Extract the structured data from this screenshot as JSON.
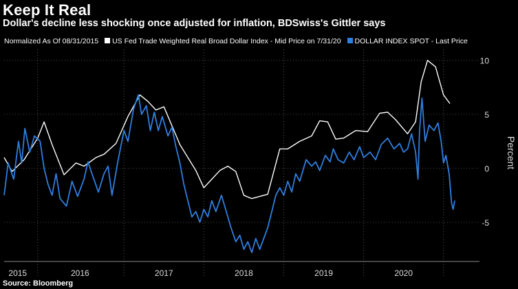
{
  "title": "Keep It Real",
  "subtitle": "Dollar's decline less shocking once adjusted for inflation, BDSwiss's Gittler says",
  "legend": {
    "note": "Normalized As Of 08/31/2015",
    "series1": "US Fed Trade Weighted Real Broad Dollar Index - Mid Price on 7/31/20",
    "series2": "DOLLAR INDEX SPOT - Last Price"
  },
  "source": "Source: Bloomberg",
  "colors": {
    "series1": "#ffffff",
    "series2": "#2f7fe0",
    "grid": "#444444",
    "background": "#000000"
  },
  "chart_data": {
    "type": "line",
    "ylabel": "Percent",
    "ylim": [
      -8.5,
      11
    ],
    "xlim": [
      2015.0,
      2020.95
    ],
    "y_ticks": [
      -5,
      0,
      5,
      10
    ],
    "y_tick_labels": [
      "-5",
      "0",
      "5",
      "10"
    ],
    "x_ticks": [
      {
        "label": "2015",
        "value": 2015.17
      },
      {
        "label": "2016",
        "value": 2015.95
      },
      {
        "label": "2017",
        "value": 2017.0
      },
      {
        "label": "2018",
        "value": 2018.0
      },
      {
        "label": "2019",
        "value": 2019.0
      },
      {
        "label": "2020",
        "value": 2020.0
      }
    ],
    "year_separators": [
      2015.42,
      2016.5,
      2017.5,
      2018.5,
      2019.5,
      2020.5
    ],
    "grid": true,
    "series": [
      {
        "name": "US Fed Trade Weighted Real Broad Dollar Index - Mid Price on 7/31/20",
        "color": "#ffffff",
        "points": [
          [
            2015.0,
            1.0
          ],
          [
            2015.1,
            -0.3
          ],
          [
            2015.25,
            0.8
          ],
          [
            2015.42,
            2.8
          ],
          [
            2015.5,
            4.3
          ],
          [
            2015.6,
            2.2
          ],
          [
            2015.75,
            -0.6
          ],
          [
            2015.9,
            0.5
          ],
          [
            2016.0,
            0.2
          ],
          [
            2016.15,
            1.0
          ],
          [
            2016.25,
            1.3
          ],
          [
            2016.4,
            2.3
          ],
          [
            2016.55,
            4.8
          ],
          [
            2016.7,
            6.8
          ],
          [
            2016.8,
            6.2
          ],
          [
            2016.9,
            5.4
          ],
          [
            2017.0,
            5.7
          ],
          [
            2017.2,
            2.2
          ],
          [
            2017.4,
            -0.2
          ],
          [
            2017.5,
            -1.8
          ],
          [
            2017.7,
            -0.2
          ],
          [
            2017.8,
            0.2
          ],
          [
            2017.9,
            -0.3
          ],
          [
            2018.0,
            -2.5
          ],
          [
            2018.1,
            -2.8
          ],
          [
            2018.3,
            -2.4
          ],
          [
            2018.45,
            1.8
          ],
          [
            2018.55,
            1.8
          ],
          [
            2018.7,
            2.5
          ],
          [
            2018.85,
            3.0
          ],
          [
            2018.95,
            4.4
          ],
          [
            2019.05,
            4.3
          ],
          [
            2019.15,
            2.7
          ],
          [
            2019.25,
            2.8
          ],
          [
            2019.4,
            3.5
          ],
          [
            2019.55,
            3.4
          ],
          [
            2019.7,
            5.1
          ],
          [
            2019.8,
            5.2
          ],
          [
            2019.9,
            4.5
          ],
          [
            2020.05,
            3.2
          ],
          [
            2020.15,
            4.3
          ],
          [
            2020.22,
            8.0
          ],
          [
            2020.3,
            10.0
          ],
          [
            2020.4,
            9.4
          ],
          [
            2020.5,
            6.8
          ],
          [
            2020.58,
            6.0
          ]
        ]
      },
      {
        "name": "DOLLAR INDEX SPOT - Last Price",
        "color": "#2f7fe0",
        "points": [
          [
            2015.0,
            -2.5
          ],
          [
            2015.05,
            0.5
          ],
          [
            2015.12,
            -1.0
          ],
          [
            2015.18,
            2.5
          ],
          [
            2015.22,
            0.5
          ],
          [
            2015.26,
            3.7
          ],
          [
            2015.32,
            1.5
          ],
          [
            2015.38,
            3.0
          ],
          [
            2015.45,
            2.5
          ],
          [
            2015.5,
            0.0
          ],
          [
            2015.55,
            -1.5
          ],
          [
            2015.6,
            -2.5
          ],
          [
            2015.65,
            -0.5
          ],
          [
            2015.7,
            -2.8
          ],
          [
            2015.78,
            -3.5
          ],
          [
            2015.85,
            -1.2
          ],
          [
            2015.92,
            -2.6
          ],
          [
            2016.0,
            -1.0
          ],
          [
            2016.05,
            0.6
          ],
          [
            2016.1,
            -0.5
          ],
          [
            2016.18,
            -2.2
          ],
          [
            2016.25,
            -0.5
          ],
          [
            2016.3,
            0.2
          ],
          [
            2016.35,
            -2.5
          ],
          [
            2016.42,
            0.5
          ],
          [
            2016.5,
            3.5
          ],
          [
            2016.55,
            2.5
          ],
          [
            2016.62,
            5.5
          ],
          [
            2016.68,
            6.8
          ],
          [
            2016.72,
            5.0
          ],
          [
            2016.78,
            5.8
          ],
          [
            2016.83,
            3.5
          ],
          [
            2016.88,
            5.2
          ],
          [
            2016.93,
            3.5
          ],
          [
            2016.98,
            4.8
          ],
          [
            2017.05,
            3.0
          ],
          [
            2017.1,
            3.8
          ],
          [
            2017.15,
            2.0
          ],
          [
            2017.2,
            0.5
          ],
          [
            2017.25,
            -1.5
          ],
          [
            2017.3,
            -3.0
          ],
          [
            2017.35,
            -4.5
          ],
          [
            2017.4,
            -4.0
          ],
          [
            2017.45,
            -5.0
          ],
          [
            2017.5,
            -3.8
          ],
          [
            2017.55,
            -4.5
          ],
          [
            2017.6,
            -3.0
          ],
          [
            2017.65,
            -4.0
          ],
          [
            2017.72,
            -2.5
          ],
          [
            2017.78,
            -4.0
          ],
          [
            2017.84,
            -5.5
          ],
          [
            2017.9,
            -6.8
          ],
          [
            2017.95,
            -6.2
          ],
          [
            2018.0,
            -7.5
          ],
          [
            2018.05,
            -6.8
          ],
          [
            2018.1,
            -7.8
          ],
          [
            2018.15,
            -6.5
          ],
          [
            2018.2,
            -7.5
          ],
          [
            2018.25,
            -6.5
          ],
          [
            2018.3,
            -5.5
          ],
          [
            2018.35,
            -4.0
          ],
          [
            2018.4,
            -2.5
          ],
          [
            2018.45,
            -1.8
          ],
          [
            2018.5,
            -2.5
          ],
          [
            2018.55,
            -1.2
          ],
          [
            2018.6,
            -2.2
          ],
          [
            2018.65,
            -0.5
          ],
          [
            2018.7,
            -1.2
          ],
          [
            2018.78,
            0.8
          ],
          [
            2018.85,
            0.2
          ],
          [
            2018.9,
            0.6
          ],
          [
            2018.95,
            -0.2
          ],
          [
            2019.02,
            1.2
          ],
          [
            2019.08,
            0.6
          ],
          [
            2019.12,
            1.8
          ],
          [
            2019.18,
            0.8
          ],
          [
            2019.25,
            0.5
          ],
          [
            2019.32,
            1.5
          ],
          [
            2019.38,
            0.8
          ],
          [
            2019.45,
            2.0
          ],
          [
            2019.5,
            1.0
          ],
          [
            2019.58,
            1.5
          ],
          [
            2019.65,
            0.8
          ],
          [
            2019.72,
            2.2
          ],
          [
            2019.8,
            2.8
          ],
          [
            2019.88,
            1.8
          ],
          [
            2019.95,
            2.3
          ],
          [
            2020.0,
            1.5
          ],
          [
            2020.05,
            1.8
          ],
          [
            2020.1,
            3.2
          ],
          [
            2020.15,
            1.5
          ],
          [
            2020.18,
            -1.0
          ],
          [
            2020.2,
            3.5
          ],
          [
            2020.23,
            6.5
          ],
          [
            2020.27,
            2.5
          ],
          [
            2020.32,
            4.0
          ],
          [
            2020.38,
            3.5
          ],
          [
            2020.43,
            4.2
          ],
          [
            2020.47,
            2.5
          ],
          [
            2020.5,
            0.5
          ],
          [
            2020.53,
            1.2
          ],
          [
            2020.57,
            -0.5
          ],
          [
            2020.6,
            -3.2
          ],
          [
            2020.62,
            -3.8
          ],
          [
            2020.64,
            -3.0
          ]
        ]
      }
    ]
  }
}
